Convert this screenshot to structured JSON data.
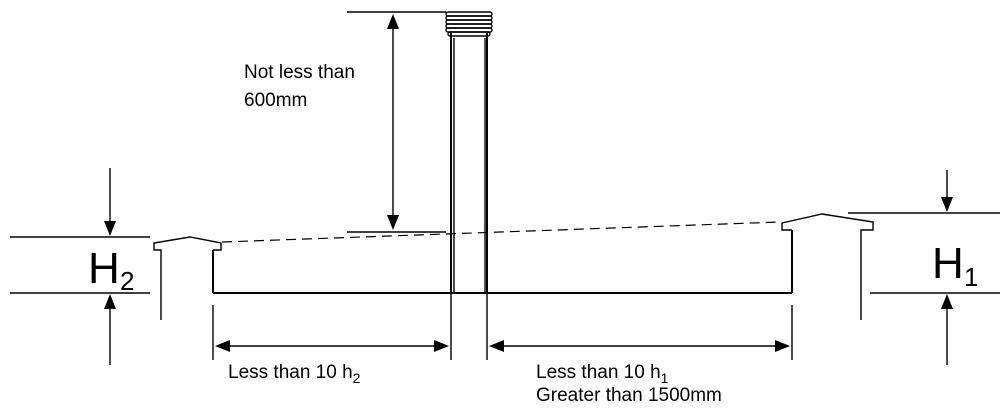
{
  "labels": {
    "chimney_height": [
      "Not less than",
      "600mm"
    ],
    "h2": {
      "letter": "H",
      "subscript": "2"
    },
    "h1": {
      "letter": "H",
      "subscript": "1"
    },
    "left_distance": {
      "text": "Less than 10 h",
      "subscript": "2"
    },
    "right_distance": {
      "text": "Less than 10 h",
      "subscript": "1"
    },
    "right_distance_2": "Greater than 1500mm"
  }
}
